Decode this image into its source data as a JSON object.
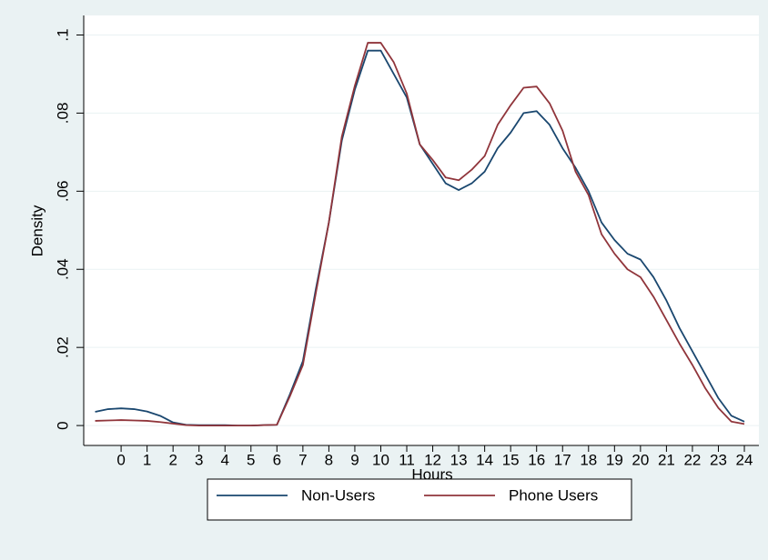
{
  "chart_data": {
    "type": "line",
    "x_label": "Hours",
    "y_label": "Density",
    "x": [
      -1,
      -0.5,
      0,
      0.5,
      1,
      1.5,
      2,
      2.5,
      3,
      3.5,
      4,
      4.5,
      5,
      5.5,
      6,
      6.5,
      7,
      7.5,
      8,
      8.5,
      9,
      9.5,
      10,
      10.5,
      11,
      11.5,
      12,
      12.5,
      13,
      13.5,
      14,
      14.5,
      15,
      15.5,
      16,
      16.5,
      17,
      17.5,
      18,
      18.5,
      19,
      19.5,
      20,
      20.5,
      21,
      21.5,
      22,
      22.5,
      23,
      23.5,
      24
    ],
    "series": [
      {
        "name": "Non-Users",
        "color": "#1a476f",
        "values": [
          0.0035,
          0.0042,
          0.0044,
          0.0042,
          0.0036,
          0.0025,
          0.0008,
          0.0002,
          0.0001,
          0.0001,
          0.0001,
          0,
          0,
          0.0001,
          0.0002,
          0.008,
          0.0165,
          0.035,
          0.052,
          0.073,
          0.086,
          0.096,
          0.096,
          0.09,
          0.084,
          0.072,
          0.067,
          0.062,
          0.0603,
          0.062,
          0.065,
          0.071,
          0.075,
          0.08,
          0.0805,
          0.077,
          0.071,
          0.066,
          0.06,
          0.052,
          0.0475,
          0.044,
          0.0425,
          0.038,
          0.032,
          0.025,
          0.019,
          0.013,
          0.007,
          0.0025,
          0.001
        ]
      },
      {
        "name": "Phone Users",
        "color": "#90353b",
        "values": [
          0.0012,
          0.0013,
          0.0014,
          0.0013,
          0.0012,
          0.0009,
          0.0005,
          0.0001,
          0,
          0,
          0,
          0,
          0,
          0.0001,
          0.0002,
          0.0075,
          0.0155,
          0.034,
          0.052,
          0.074,
          0.087,
          0.098,
          0.098,
          0.093,
          0.085,
          0.072,
          0.068,
          0.0635,
          0.0628,
          0.0655,
          0.069,
          0.077,
          0.082,
          0.0865,
          0.0868,
          0.0825,
          0.0755,
          0.065,
          0.059,
          0.049,
          0.044,
          0.04,
          0.038,
          0.033,
          0.027,
          0.021,
          0.0155,
          0.0095,
          0.0045,
          0.001,
          0.0004
        ]
      }
    ],
    "xlim": [
      -1.44,
      24.56
    ],
    "xticks": [
      0,
      1,
      2,
      3,
      4,
      5,
      6,
      7,
      8,
      9,
      10,
      11,
      12,
      13,
      14,
      15,
      16,
      17,
      18,
      19,
      20,
      21,
      22,
      23,
      24
    ],
    "ylim": [
      -0.0051,
      0.105
    ],
    "yticks": [
      0,
      {
        "value": 0.02,
        "label": ".02"
      },
      {
        "value": 0.04,
        "label": ".04"
      },
      {
        "value": 0.06,
        "label": ".06"
      },
      {
        "value": 0.08,
        "label": ".08"
      },
      {
        "value": 0.1,
        "label": ".1"
      }
    ],
    "grid": true,
    "legend": "bottom"
  }
}
